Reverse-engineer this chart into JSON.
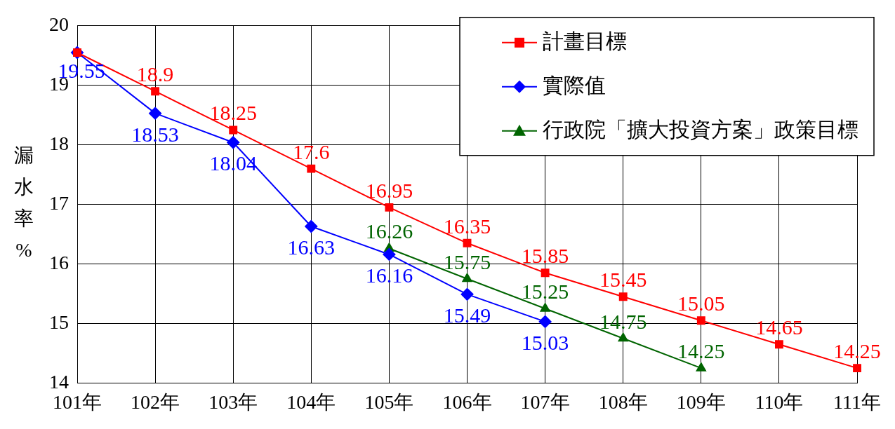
{
  "chart_data": {
    "type": "line",
    "ylabel": "漏水率%",
    "categories": [
      "101年",
      "102年",
      "103年",
      "104年",
      "105年",
      "106年",
      "107年",
      "108年",
      "109年",
      "110年",
      "111年"
    ],
    "ylim": [
      14,
      20
    ],
    "yticks": [
      14,
      15,
      16,
      17,
      18,
      19,
      20
    ],
    "grid": true,
    "legend": "top right",
    "series": [
      {
        "name": "計畫目標",
        "color": "#ff0000",
        "marker": "square",
        "values": [
          19.55,
          18.9,
          18.25,
          17.6,
          16.95,
          16.35,
          15.85,
          15.45,
          15.05,
          14.65,
          14.25
        ],
        "value_labels": [
          null,
          "18.9",
          "18.25",
          "17.6",
          "16.95",
          "16.35",
          "15.85",
          "15.45",
          "15.05",
          "14.65",
          "14.25"
        ]
      },
      {
        "name": "實際值",
        "color": "#0000ff",
        "marker": "diamond",
        "values": [
          19.55,
          18.53,
          18.04,
          16.63,
          16.16,
          15.49,
          15.03,
          null,
          null,
          null,
          null
        ],
        "value_labels": [
          "19.55",
          "18.53",
          "18.04",
          "16.63",
          "16.16",
          "15.49",
          "15.03",
          null,
          null,
          null,
          null
        ]
      },
      {
        "name": "行政院「擴大投資方案」政策目標",
        "color": "#006400",
        "marker": "triangle",
        "values": [
          null,
          null,
          null,
          null,
          16.26,
          15.75,
          15.25,
          14.75,
          14.25,
          null,
          null
        ],
        "value_labels": [
          null,
          null,
          null,
          null,
          "16.26",
          "15.75",
          "15.25",
          "14.75",
          "14.25",
          null,
          null
        ]
      }
    ]
  }
}
